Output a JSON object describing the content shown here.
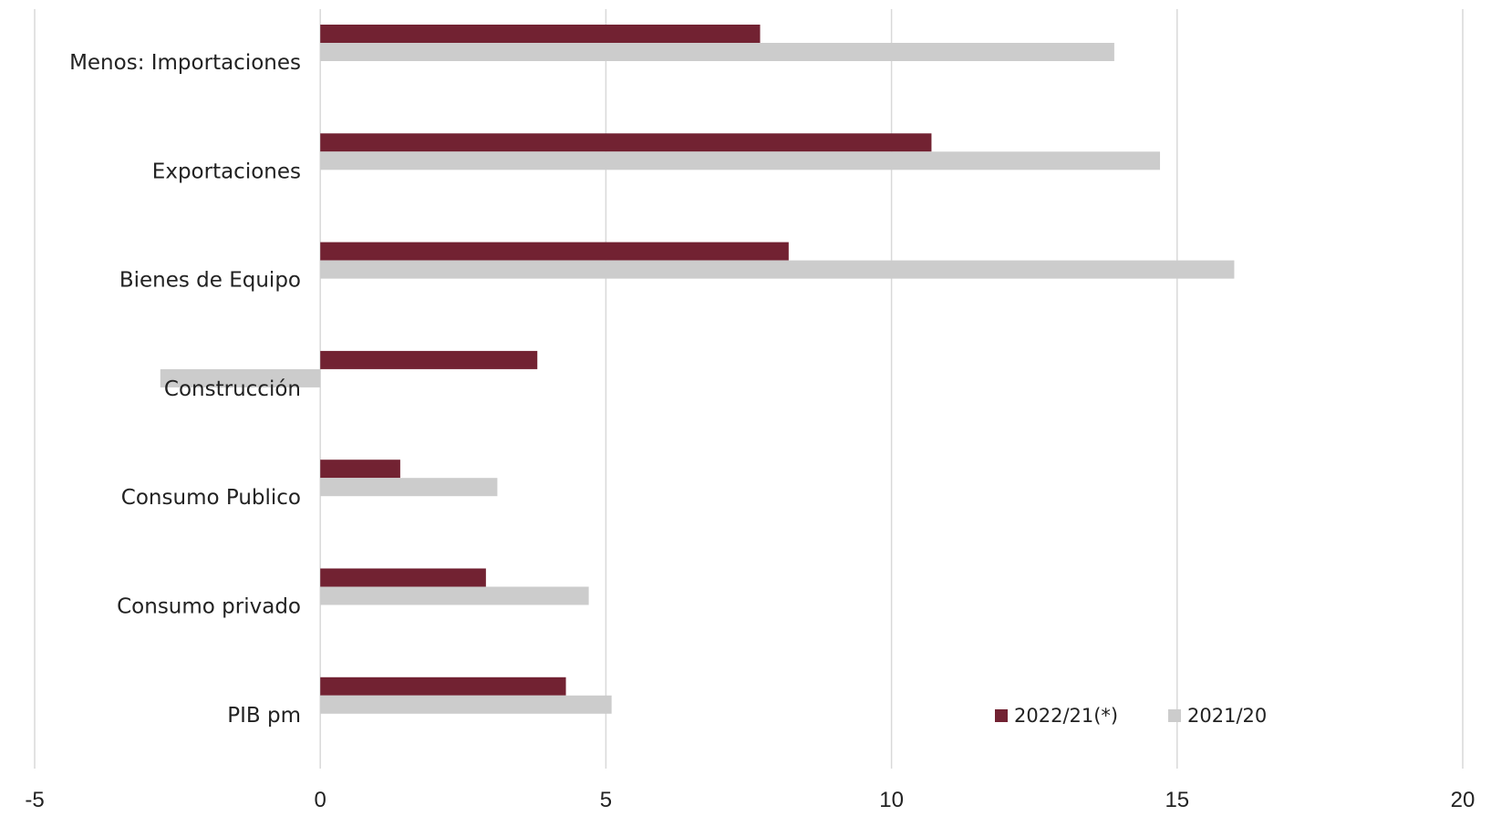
{
  "chart_data": {
    "type": "bar",
    "orientation": "horizontal",
    "categories": [
      "Menos: Importaciones",
      "Exportaciones",
      "Bienes de Equipo",
      "Construcción",
      "Consumo Publico",
      "Consumo privado",
      "PIB pm"
    ],
    "series": [
      {
        "name": "2022/21(*)",
        "color": "#722232",
        "values": [
          7.7,
          10.7,
          8.2,
          3.8,
          1.4,
          2.9,
          4.3
        ]
      },
      {
        "name": "2021/20",
        "color": "#cccccc",
        "values": [
          13.9,
          14.7,
          16.0,
          -2.8,
          3.1,
          4.7,
          5.1
        ]
      }
    ],
    "xlim": [
      -5,
      20
    ],
    "xticks": [
      "-5",
      "0",
      "5",
      "10",
      "15",
      "20"
    ],
    "grid": true,
    "legend_position": "bottom-right"
  }
}
